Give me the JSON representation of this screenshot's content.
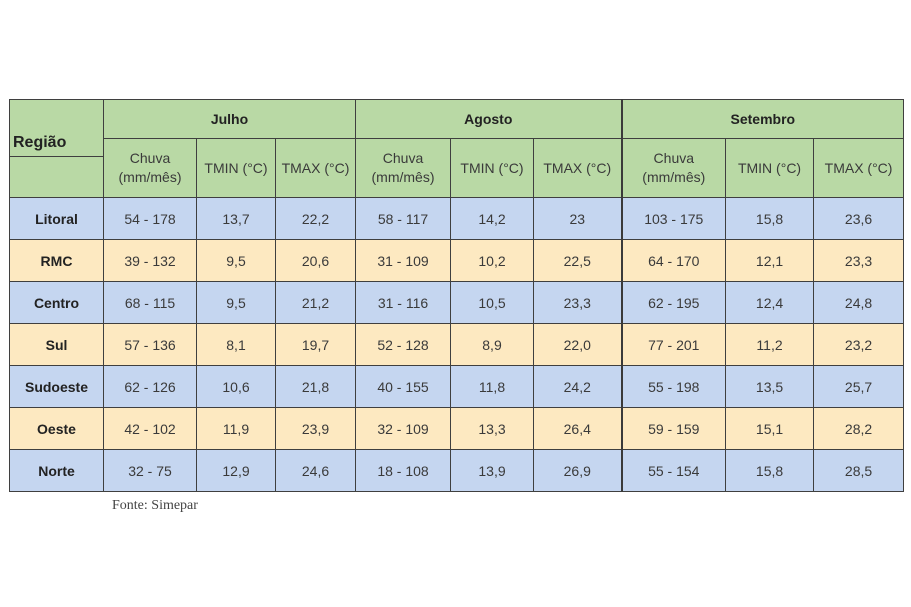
{
  "header": {
    "region_label": "Região",
    "months": [
      "Julho",
      "Agosto",
      "Setembro"
    ],
    "chuva_line1": "Chuva",
    "chuva_line2": "(mm/mês)",
    "tmin": "TMIN (°C)",
    "tmax": "TMAX (°C)"
  },
  "rows": [
    {
      "region": "Litoral",
      "jul": [
        "54 - 178",
        "13,7",
        "22,2"
      ],
      "ago": [
        "58 - 117",
        "14,2",
        "23"
      ],
      "set": [
        "103 - 175",
        "15,8",
        "23,6"
      ]
    },
    {
      "region": "RMC",
      "jul": [
        "39 - 132",
        "9,5",
        "20,6"
      ],
      "ago": [
        "31 - 109",
        "10,2",
        "22,5"
      ],
      "set": [
        "64 - 170",
        "12,1",
        "23,3"
      ]
    },
    {
      "region": "Centro",
      "jul": [
        "68 - 115",
        "9,5",
        "21,2"
      ],
      "ago": [
        "31 - 116",
        "10,5",
        "23,3"
      ],
      "set": [
        "62 - 195",
        "12,4",
        "24,8"
      ]
    },
    {
      "region": "Sul",
      "jul": [
        "57 - 136",
        "8,1",
        "19,7"
      ],
      "ago": [
        "52 - 128",
        "8,9",
        "22,0"
      ],
      "set": [
        "77 - 201",
        "11,2",
        "23,2"
      ]
    },
    {
      "region": "Sudoeste",
      "jul": [
        "62 - 126",
        "10,6",
        "21,8"
      ],
      "ago": [
        "40 - 155",
        "11,8",
        "24,2"
      ],
      "set": [
        "55 - 198",
        "13,5",
        "25,7"
      ]
    },
    {
      "region": "Oeste",
      "jul": [
        "42 - 102",
        "11,9",
        "23,9"
      ],
      "ago": [
        "32 - 109",
        "13,3",
        "26,4"
      ],
      "set": [
        "59 - 159",
        "15,1",
        "28,2"
      ]
    },
    {
      "region": "Norte",
      "jul": [
        "32 - 75",
        "12,9",
        "24,6"
      ],
      "ago": [
        "18 - 108",
        "13,9",
        "26,9"
      ],
      "set": [
        "55 - 154",
        "15,8",
        "28,5"
      ]
    }
  ],
  "row_colors": [
    "#c5d6f0",
    "#fde9c1"
  ],
  "header_color": "#b9d9a5",
  "source": "Fonte: Simepar"
}
